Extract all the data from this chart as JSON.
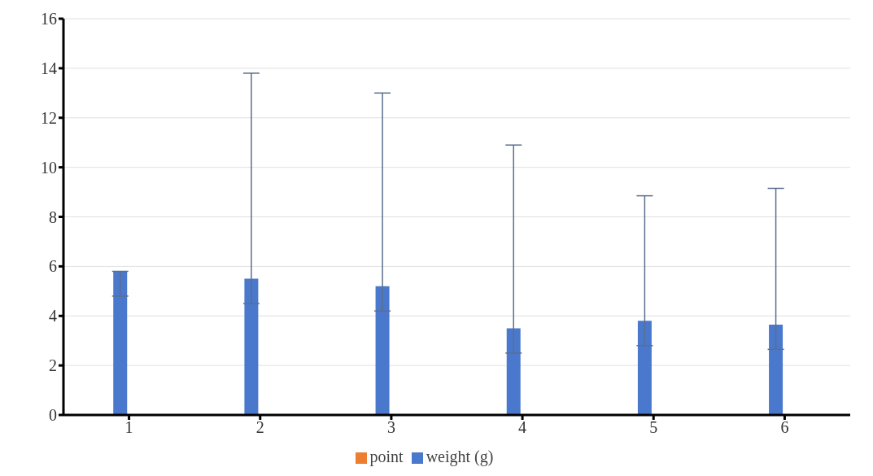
{
  "chart_data": {
    "type": "bar",
    "categories": [
      "1",
      "2",
      "3",
      "4",
      "5",
      "6"
    ],
    "series": [
      {
        "name": "weight (g)",
        "color": "#4a78cc",
        "values": [
          5.8,
          5.5,
          5.2,
          3.5,
          3.8,
          3.65
        ],
        "errors": [
          [
            4.8,
            5.8
          ],
          [
            4.5,
            13.8
          ],
          [
            4.2,
            13.0
          ],
          [
            2.5,
            10.9
          ],
          [
            2.8,
            8.85
          ],
          [
            2.65,
            9.15
          ]
        ]
      },
      {
        "name": "point",
        "color": "#ed7d31",
        "values": [
          null,
          null,
          null,
          null,
          null,
          null
        ]
      }
    ],
    "ylim": [
      0,
      16
    ],
    "yticks": [
      0,
      2,
      4,
      6,
      8,
      10,
      12,
      14,
      16
    ],
    "grid": "y",
    "legend": "bottom"
  }
}
